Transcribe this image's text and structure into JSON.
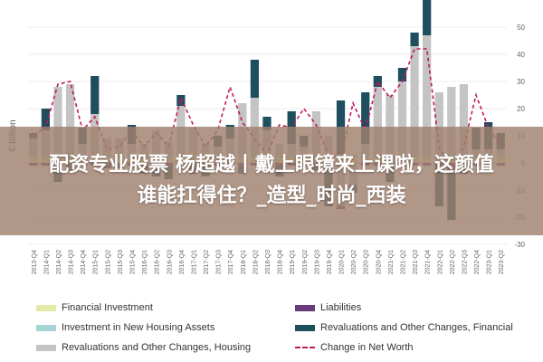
{
  "chart_data": {
    "type": "bar",
    "ylabel": "€ Billion",
    "ylim": [
      -30,
      50
    ],
    "yticks": [
      50,
      40,
      30,
      20,
      10,
      0,
      -10,
      -20,
      -30
    ],
    "categories": [
      "2013-Q4",
      "2014-Q1",
      "2014-Q2",
      "2014-Q3",
      "2014-Q4",
      "2015-Q1",
      "2015-Q2",
      "2015-Q3",
      "2015-Q4",
      "2016-Q1",
      "2016-Q2",
      "2016-Q3",
      "2016-Q4",
      "2017-Q1",
      "2017-Q2",
      "2017-Q3",
      "2017-Q4",
      "2018-Q1",
      "2018-Q2",
      "2018-Q3",
      "2018-Q4",
      "2019-Q1",
      "2019-Q2",
      "2019-Q3",
      "2019-Q4",
      "2020-Q1",
      "2020-Q2",
      "2020-Q3",
      "2020-Q4",
      "2021-Q1",
      "2021-Q2",
      "2021-Q3",
      "2021-Q4",
      "2022-Q1",
      "2022-Q2",
      "2022-Q3",
      "2022-Q4",
      "2023-Q1",
      "2023-Q2"
    ],
    "series": [
      {
        "name": "Financial Investment",
        "color": "#e3e9a6",
        "values": [
          2,
          2,
          3,
          2,
          2,
          2,
          2,
          2,
          2,
          2,
          2,
          2,
          2,
          2,
          2,
          2,
          2,
          2,
          2,
          2,
          2,
          2,
          2,
          2,
          2,
          2,
          2,
          2,
          2,
          2,
          2,
          2,
          2,
          2,
          2,
          2,
          2,
          2,
          2
        ]
      },
      {
        "name": "Investment in New Housing Assets",
        "color": "#a6d4d4",
        "values": [
          1,
          1,
          1,
          1,
          1,
          1,
          1,
          1,
          1,
          1,
          1,
          1,
          1,
          1,
          1,
          1,
          1,
          1,
          1,
          1,
          1,
          1,
          1,
          1,
          1,
          1,
          1,
          1,
          1,
          1,
          1,
          1,
          1,
          1,
          1,
          1,
          1,
          1,
          1
        ]
      },
      {
        "name": "Revaluations and Other Changes, Housing",
        "color": "#c4c4c4",
        "values": [
          6,
          9,
          24,
          26,
          4,
          15,
          6,
          6,
          4,
          4,
          9,
          5,
          18,
          10,
          4,
          3,
          6,
          19,
          21,
          9,
          4,
          4,
          3,
          16,
          7,
          -16,
          -8,
          4,
          25,
          22,
          27,
          40,
          44,
          23,
          25,
          26,
          2,
          2,
          2
        ]
      },
      {
        "name": "Liabilities",
        "color": "#6b3a7d",
        "values": [
          -1,
          -1,
          -1,
          -1,
          -1,
          -1,
          -1,
          -1,
          -1,
          -1,
          -1,
          -1,
          -1,
          -1,
          -1,
          -1,
          -1,
          -1,
          -1,
          -1,
          -1,
          -1,
          -1,
          -1,
          -1,
          -1,
          -1,
          -1,
          -1,
          -1,
          -1,
          -1,
          -1,
          -1,
          -1,
          -1,
          -1,
          -1,
          -1
        ]
      },
      {
        "name": "Revaluations and Other Changes, Financial",
        "color": "#1f4e5f",
        "values": [
          2,
          8,
          -6,
          -2,
          6,
          14,
          -1,
          -1,
          7,
          -3,
          -4,
          -5,
          4,
          -3,
          -4,
          4,
          5,
          -3,
          14,
          5,
          -4,
          12,
          4,
          -2,
          -15,
          20,
          -2,
          19,
          4,
          -6,
          5,
          5,
          14,
          -15,
          -20,
          -3,
          8,
          10,
          6
        ]
      }
    ],
    "net_worth_line": {
      "name": "Change in Net Worth",
      "color": "#c2185b",
      "values": [
        10,
        13,
        29,
        30,
        12,
        17,
        5,
        6,
        12,
        6,
        11,
        6,
        24,
        14,
        6,
        12,
        28,
        15,
        9,
        3,
        14,
        13,
        20,
        14,
        3,
        2,
        22,
        12,
        30,
        24,
        30,
        42,
        42,
        6,
        -3,
        6,
        25,
        13,
        6
      ]
    }
  },
  "legend": [
    {
      "label": "Financial Investment",
      "color": "#e3e9a6",
      "style": "swatch"
    },
    {
      "label": "Liabilities",
      "color": "#6b3a7d",
      "style": "swatch"
    },
    {
      "label": "Investment in New Housing Assets",
      "color": "#a6d4d4",
      "style": "swatch"
    },
    {
      "label": "Revaluations and Other Changes, Financial",
      "color": "#1f4e5f",
      "style": "swatch"
    },
    {
      "label": "Revaluations and Other Changes, Housing",
      "color": "#c4c4c4",
      "style": "swatch"
    },
    {
      "label": "Change in Net Worth",
      "color": "#c2185b",
      "style": "dash"
    }
  ],
  "overlay": {
    "line1": "配资专业股票 杨超越丨戴上眼镜来上课啦，这颜值",
    "line2": "谁能扛得住？_造型_时尚_西装"
  }
}
